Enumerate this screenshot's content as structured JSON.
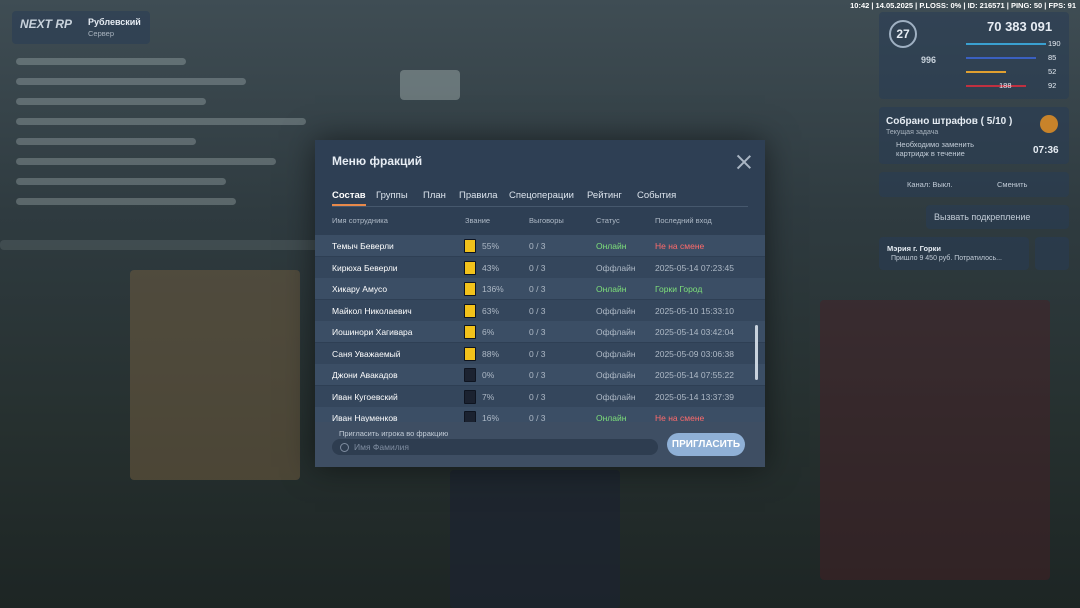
{
  "hud": {
    "status_bar": "10:42 | 14.05.2025 | P.LOSS: 0% | ID: 216571 | PING: 50 | FPS: 91",
    "logo": "NEXT RP",
    "server_name": "Рублевский",
    "server_sub": "Сервер",
    "level": "27",
    "money": "70 383 091",
    "ammo": "996",
    "stats": [
      "190",
      "85",
      "52",
      "92"
    ],
    "extra": "188"
  },
  "task": {
    "title": "Собрано штрафов ( 5/10 )",
    "subtitle": "Текущая задача",
    "text": "Необходимо заменить картридж в течение",
    "timer": "07:36"
  },
  "radio": {
    "channel": "Канал: Выкл.",
    "change": "Сменить"
  },
  "backup": "Вызвать подкрепление",
  "notification": {
    "title": "Мэрия г. Горки",
    "text": "Пришло 9 450 руб. Потратилось..."
  },
  "modal": {
    "title": "Меню фракций",
    "tabs": [
      "Состав",
      "Группы",
      "План",
      "Правила",
      "Спецоперации",
      "Рейтинг",
      "События"
    ],
    "columns": [
      "Имя сотрудника",
      "Звание",
      "Выговоры",
      "Статус",
      "Последний вход"
    ],
    "rows": [
      {
        "name": "Темыч Беверли",
        "rank": "55%",
        "warnings": "0 / 3",
        "status": "Онлайн",
        "last": "Не на смене",
        "badge_color": "#f2c21b",
        "status_color": "#7ee07a",
        "last_color": "#ff6b6b"
      },
      {
        "name": "Кирюха Беверли",
        "rank": "43%",
        "warnings": "0 / 3",
        "status": "Оффлайн",
        "last": "2025-05-14 07:23:45",
        "badge_color": "#f2c21b",
        "status_color": "#aeb9c6",
        "last_color": "#aeb9c6"
      },
      {
        "name": "Хикару Амусо",
        "rank": "136%",
        "warnings": "0 / 3",
        "status": "Онлайн",
        "last": "Горки Город",
        "badge_color": "#f2c21b",
        "status_color": "#7ee07a",
        "last_color": "#7ee07a"
      },
      {
        "name": "Майкол Николаевич",
        "rank": "63%",
        "warnings": "0 / 3",
        "status": "Оффлайн",
        "last": "2025-05-10 15:33:10",
        "badge_color": "#f2c21b",
        "status_color": "#aeb9c6",
        "last_color": "#aeb9c6"
      },
      {
        "name": "Иошинори Хагивара",
        "rank": "6%",
        "warnings": "0 / 3",
        "status": "Оффлайн",
        "last": "2025-05-14 03:42:04",
        "badge_color": "#f2c21b",
        "status_color": "#aeb9c6",
        "last_color": "#aeb9c6"
      },
      {
        "name": "Саня Уважаемый",
        "rank": "88%",
        "warnings": "0 / 3",
        "status": "Оффлайн",
        "last": "2025-05-09 03:06:38",
        "badge_color": "#f2c21b",
        "status_color": "#aeb9c6",
        "last_color": "#aeb9c6"
      },
      {
        "name": "Джони Авакадов",
        "rank": "0%",
        "warnings": "0 / 3",
        "status": "Оффлайн",
        "last": "2025-05-14 07:55:22",
        "badge_color": "#1b2230",
        "status_color": "#aeb9c6",
        "last_color": "#aeb9c6"
      },
      {
        "name": "Иван Кугоевский",
        "rank": "7%",
        "warnings": "0 / 3",
        "status": "Оффлайн",
        "last": "2025-05-14 13:37:39",
        "badge_color": "#1b2230",
        "status_color": "#aeb9c6",
        "last_color": "#aeb9c6"
      },
      {
        "name": "Иван Науменков",
        "rank": "16%",
        "warnings": "0 / 3",
        "status": "Онлайн",
        "last": "Не на смене",
        "badge_color": "#1b2230",
        "status_color": "#7ee07a",
        "last_color": "#ff6b6b"
      }
    ],
    "invite": {
      "label": "Пригласить игрока во фракцию",
      "placeholder": "Имя Фамилия",
      "button": "ПРИГЛАСИТЬ"
    }
  }
}
